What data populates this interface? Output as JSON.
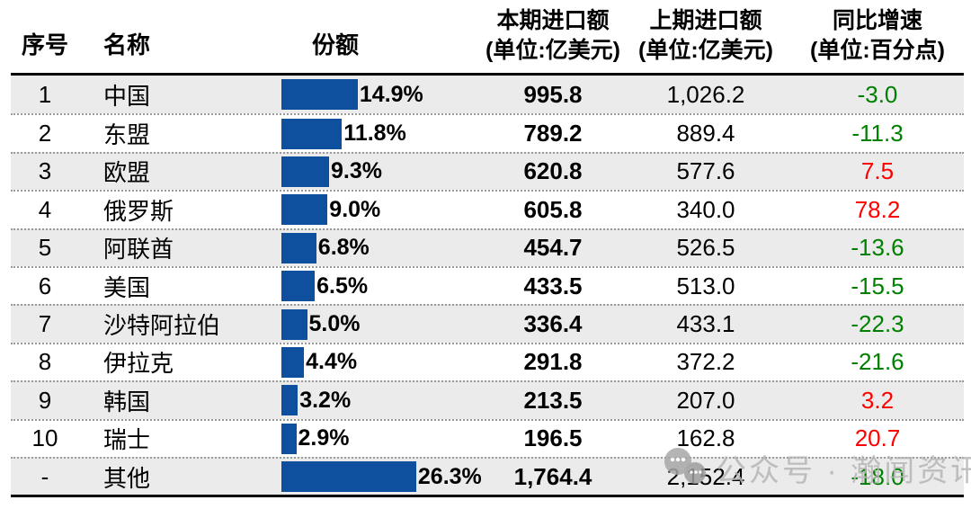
{
  "table": {
    "headers": {
      "num": "序号",
      "name": "名称",
      "share": "份额",
      "current_line1": "本期进口额",
      "current_line2": "(单位:亿美元)",
      "previous_line1": "上期进口额",
      "previous_line2": "(单位:亿美元)",
      "yoy_line1": "同比增速",
      "yoy_line2": "(单位:百分点)"
    },
    "rows": [
      {
        "num": "1",
        "name": "中国",
        "share_pct": 14.9,
        "share_label": "14.9%",
        "current": "995.8",
        "previous": "1,026.2",
        "yoy": "-3.0"
      },
      {
        "num": "2",
        "name": "东盟",
        "share_pct": 11.8,
        "share_label": "11.8%",
        "current": "789.2",
        "previous": "889.4",
        "yoy": "-11.3"
      },
      {
        "num": "3",
        "name": "欧盟",
        "share_pct": 9.3,
        "share_label": "9.3%",
        "current": "620.8",
        "previous": "577.6",
        "yoy": "7.5"
      },
      {
        "num": "4",
        "name": "俄罗斯",
        "share_pct": 9.0,
        "share_label": "9.0%",
        "current": "605.8",
        "previous": "340.0",
        "yoy": "78.2"
      },
      {
        "num": "5",
        "name": "阿联酋",
        "share_pct": 6.8,
        "share_label": "6.8%",
        "current": "454.7",
        "previous": "526.5",
        "yoy": "-13.6"
      },
      {
        "num": "6",
        "name": "美国",
        "share_pct": 6.5,
        "share_label": "6.5%",
        "current": "433.5",
        "previous": "513.0",
        "yoy": "-15.5"
      },
      {
        "num": "7",
        "name": "沙特阿拉伯",
        "share_pct": 5.0,
        "share_label": "5.0%",
        "current": "336.4",
        "previous": "433.1",
        "yoy": "-22.3"
      },
      {
        "num": "8",
        "name": "伊拉克",
        "share_pct": 4.4,
        "share_label": "4.4%",
        "current": "291.8",
        "previous": "372.2",
        "yoy": "-21.6"
      },
      {
        "num": "9",
        "name": "韩国",
        "share_pct": 3.2,
        "share_label": "3.2%",
        "current": "213.5",
        "previous": "207.0",
        "yoy": "3.2"
      },
      {
        "num": "10",
        "name": "瑞士",
        "share_pct": 2.9,
        "share_label": "2.9%",
        "current": "196.5",
        "previous": "162.8",
        "yoy": "20.7"
      },
      {
        "num": "-",
        "name": "其他",
        "share_pct": 26.3,
        "share_label": "26.3%",
        "current": "1,764.4",
        "previous": "2,152.4",
        "yoy": "-18.0"
      }
    ]
  },
  "watermark": {
    "icon": "wechat-bubbles-icon",
    "text": "公众号 · 瀚闻资讯"
  },
  "colors": {
    "bar_fill": "#0E509E",
    "yoy_positive": "#FF0000",
    "yoy_negative": "#008000",
    "row_alt_bg": "#EBEBEB",
    "watermark_gray": "#ADADAD"
  },
  "chart_data": {
    "type": "table",
    "title": "",
    "columns": [
      "序号",
      "名称",
      "份额",
      "本期进口额(单位:亿美元)",
      "上期进口额(单位:亿美元)",
      "同比增速(单位:百分点)"
    ],
    "rows": [
      [
        "1",
        "中国",
        "14.9%",
        "995.8",
        "1,026.2",
        "-3.0"
      ],
      [
        "2",
        "东盟",
        "11.8%",
        "789.2",
        "889.4",
        "-11.3"
      ],
      [
        "3",
        "欧盟",
        "9.3%",
        "620.8",
        "577.6",
        "7.5"
      ],
      [
        "4",
        "俄罗斯",
        "9.0%",
        "605.8",
        "340.0",
        "78.2"
      ],
      [
        "5",
        "阿联酋",
        "6.8%",
        "454.7",
        "526.5",
        "-13.6"
      ],
      [
        "6",
        "美国",
        "6.5%",
        "433.5",
        "513.0",
        "-15.5"
      ],
      [
        "7",
        "沙特阿拉伯",
        "5.0%",
        "336.4",
        "433.1",
        "-22.3"
      ],
      [
        "8",
        "伊拉克",
        "4.4%",
        "291.8",
        "372.2",
        "-21.6"
      ],
      [
        "9",
        "韩国",
        "3.2%",
        "213.5",
        "207.0",
        "3.2"
      ],
      [
        "10",
        "瑞士",
        "2.9%",
        "196.5",
        "162.8",
        "20.7"
      ],
      [
        "-",
        "其他",
        "26.3%",
        "1,764.4",
        "2,152.4",
        "-18.0"
      ]
    ],
    "embedded_bar": {
      "type": "bar",
      "orientation": "horizontal",
      "categories": [
        "中国",
        "东盟",
        "欧盟",
        "俄罗斯",
        "阿联酋",
        "美国",
        "沙特阿拉伯",
        "伊拉克",
        "韩国",
        "瑞士",
        "其他"
      ],
      "values": [
        14.9,
        11.8,
        9.3,
        9.0,
        6.8,
        6.5,
        5.0,
        4.4,
        3.2,
        2.9,
        26.3
      ],
      "unit": "%",
      "value_color_rule": "negative yoy = green, positive yoy = red"
    }
  }
}
